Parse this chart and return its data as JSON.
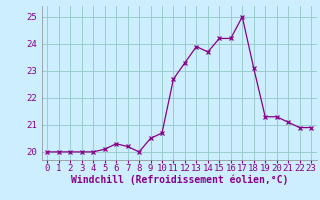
{
  "xlabel": "Windchill (Refroidissement éolien,°C)",
  "hours": [
    0,
    1,
    2,
    3,
    4,
    5,
    6,
    7,
    8,
    9,
    10,
    11,
    12,
    13,
    14,
    15,
    16,
    17,
    18,
    19,
    20,
    21,
    22,
    23
  ],
  "values": [
    20.0,
    20.0,
    20.0,
    20.0,
    20.0,
    20.1,
    20.3,
    20.2,
    20.0,
    20.5,
    20.7,
    22.7,
    23.3,
    23.9,
    23.7,
    24.2,
    24.2,
    25.0,
    23.1,
    21.3,
    21.3,
    21.1,
    20.9,
    20.9
  ],
  "line_color": "#880088",
  "marker": "x",
  "bg_color": "#cceeff",
  "grid_color": "#99cccc",
  "ylim": [
    19.7,
    25.4
  ],
  "yticks": [
    20,
    21,
    22,
    23,
    24,
    25
  ],
  "xticks": [
    0,
    1,
    2,
    3,
    4,
    5,
    6,
    7,
    8,
    9,
    10,
    11,
    12,
    13,
    14,
    15,
    16,
    17,
    18,
    19,
    20,
    21,
    22,
    23
  ],
  "tick_label_fontsize": 6.5,
  "xlabel_fontsize": 7.0
}
